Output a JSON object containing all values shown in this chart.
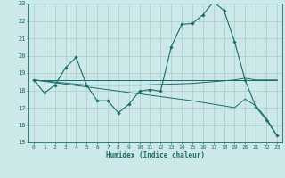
{
  "xlabel": "Humidex (Indice chaleur)",
  "xlim": [
    -0.5,
    23.5
  ],
  "ylim": [
    15,
    23
  ],
  "yticks": [
    15,
    16,
    17,
    18,
    19,
    20,
    21,
    22,
    23
  ],
  "xticks": [
    0,
    1,
    2,
    3,
    4,
    5,
    6,
    7,
    8,
    9,
    10,
    11,
    12,
    13,
    14,
    15,
    16,
    17,
    18,
    19,
    20,
    21,
    22,
    23
  ],
  "bg_color": "#cce8e8",
  "grid_color": "#aacccc",
  "line_color": "#1a6b6b",
  "line1_x": [
    0,
    1,
    2,
    3,
    4,
    5,
    6,
    7,
    8,
    9,
    10,
    11,
    12,
    13,
    14,
    15,
    16,
    17,
    18,
    19,
    20,
    21,
    22,
    23
  ],
  "line1_y": [
    18.6,
    17.85,
    18.3,
    19.3,
    19.9,
    18.3,
    17.4,
    17.4,
    16.7,
    17.2,
    17.95,
    18.05,
    17.95,
    20.5,
    21.8,
    21.85,
    22.35,
    23.1,
    22.6,
    20.8,
    18.6,
    17.05,
    16.3,
    15.4
  ],
  "line2_x": [
    0,
    23
  ],
  "line2_y": [
    18.6,
    18.6
  ],
  "line3_x": [
    0,
    20,
    23
  ],
  "line3_y": [
    18.6,
    18.6,
    18.6
  ],
  "line4_x": [
    0,
    5,
    10,
    15,
    19,
    20,
    21,
    22,
    23
  ],
  "line4_y": [
    18.6,
    18.3,
    18.3,
    18.4,
    18.6,
    18.7,
    18.6,
    18.6,
    18.6
  ],
  "line5_x": [
    0,
    5,
    10,
    15,
    19,
    20,
    21,
    22,
    23
  ],
  "line5_y": [
    18.6,
    18.2,
    17.8,
    17.4,
    17.0,
    17.5,
    17.1,
    16.4,
    15.4
  ]
}
